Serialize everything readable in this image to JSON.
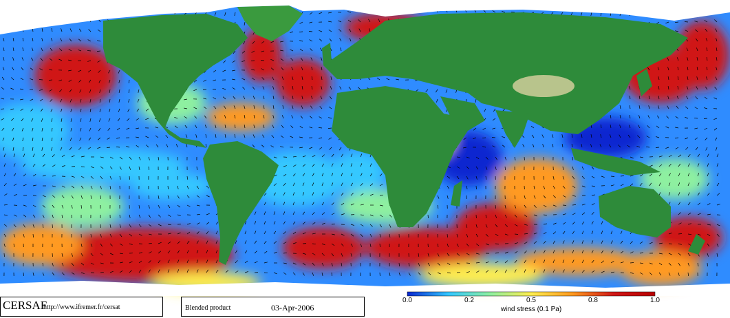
{
  "map": {
    "type": "global wind stress field",
    "land_color": "#2e8b3a",
    "ice_color": "#ffffff",
    "low_color": "#0a28d0",
    "mid_color": "#34c8ff",
    "high_color": "#d01818",
    "vector_color": "#000000"
  },
  "footer": {
    "org": "CERSAF",
    "url": "http://www.ifremer.fr/cersat",
    "product": "Blended product",
    "date": "03-Apr-2006"
  },
  "colorbar": {
    "ticks": [
      "0.0",
      "0.2",
      "0.5",
      "0.8",
      "1.0"
    ],
    "tick_values": [
      0.0,
      0.2,
      0.5,
      0.8,
      1.0
    ],
    "range": [
      0.0,
      1.0
    ],
    "label": "wind stress (0.1 Pa)",
    "colors": [
      "#0a28d0",
      "#34c8ff",
      "#8ef0a0",
      "#ffee50",
      "#ff9a20",
      "#d01818",
      "#b80000"
    ]
  }
}
